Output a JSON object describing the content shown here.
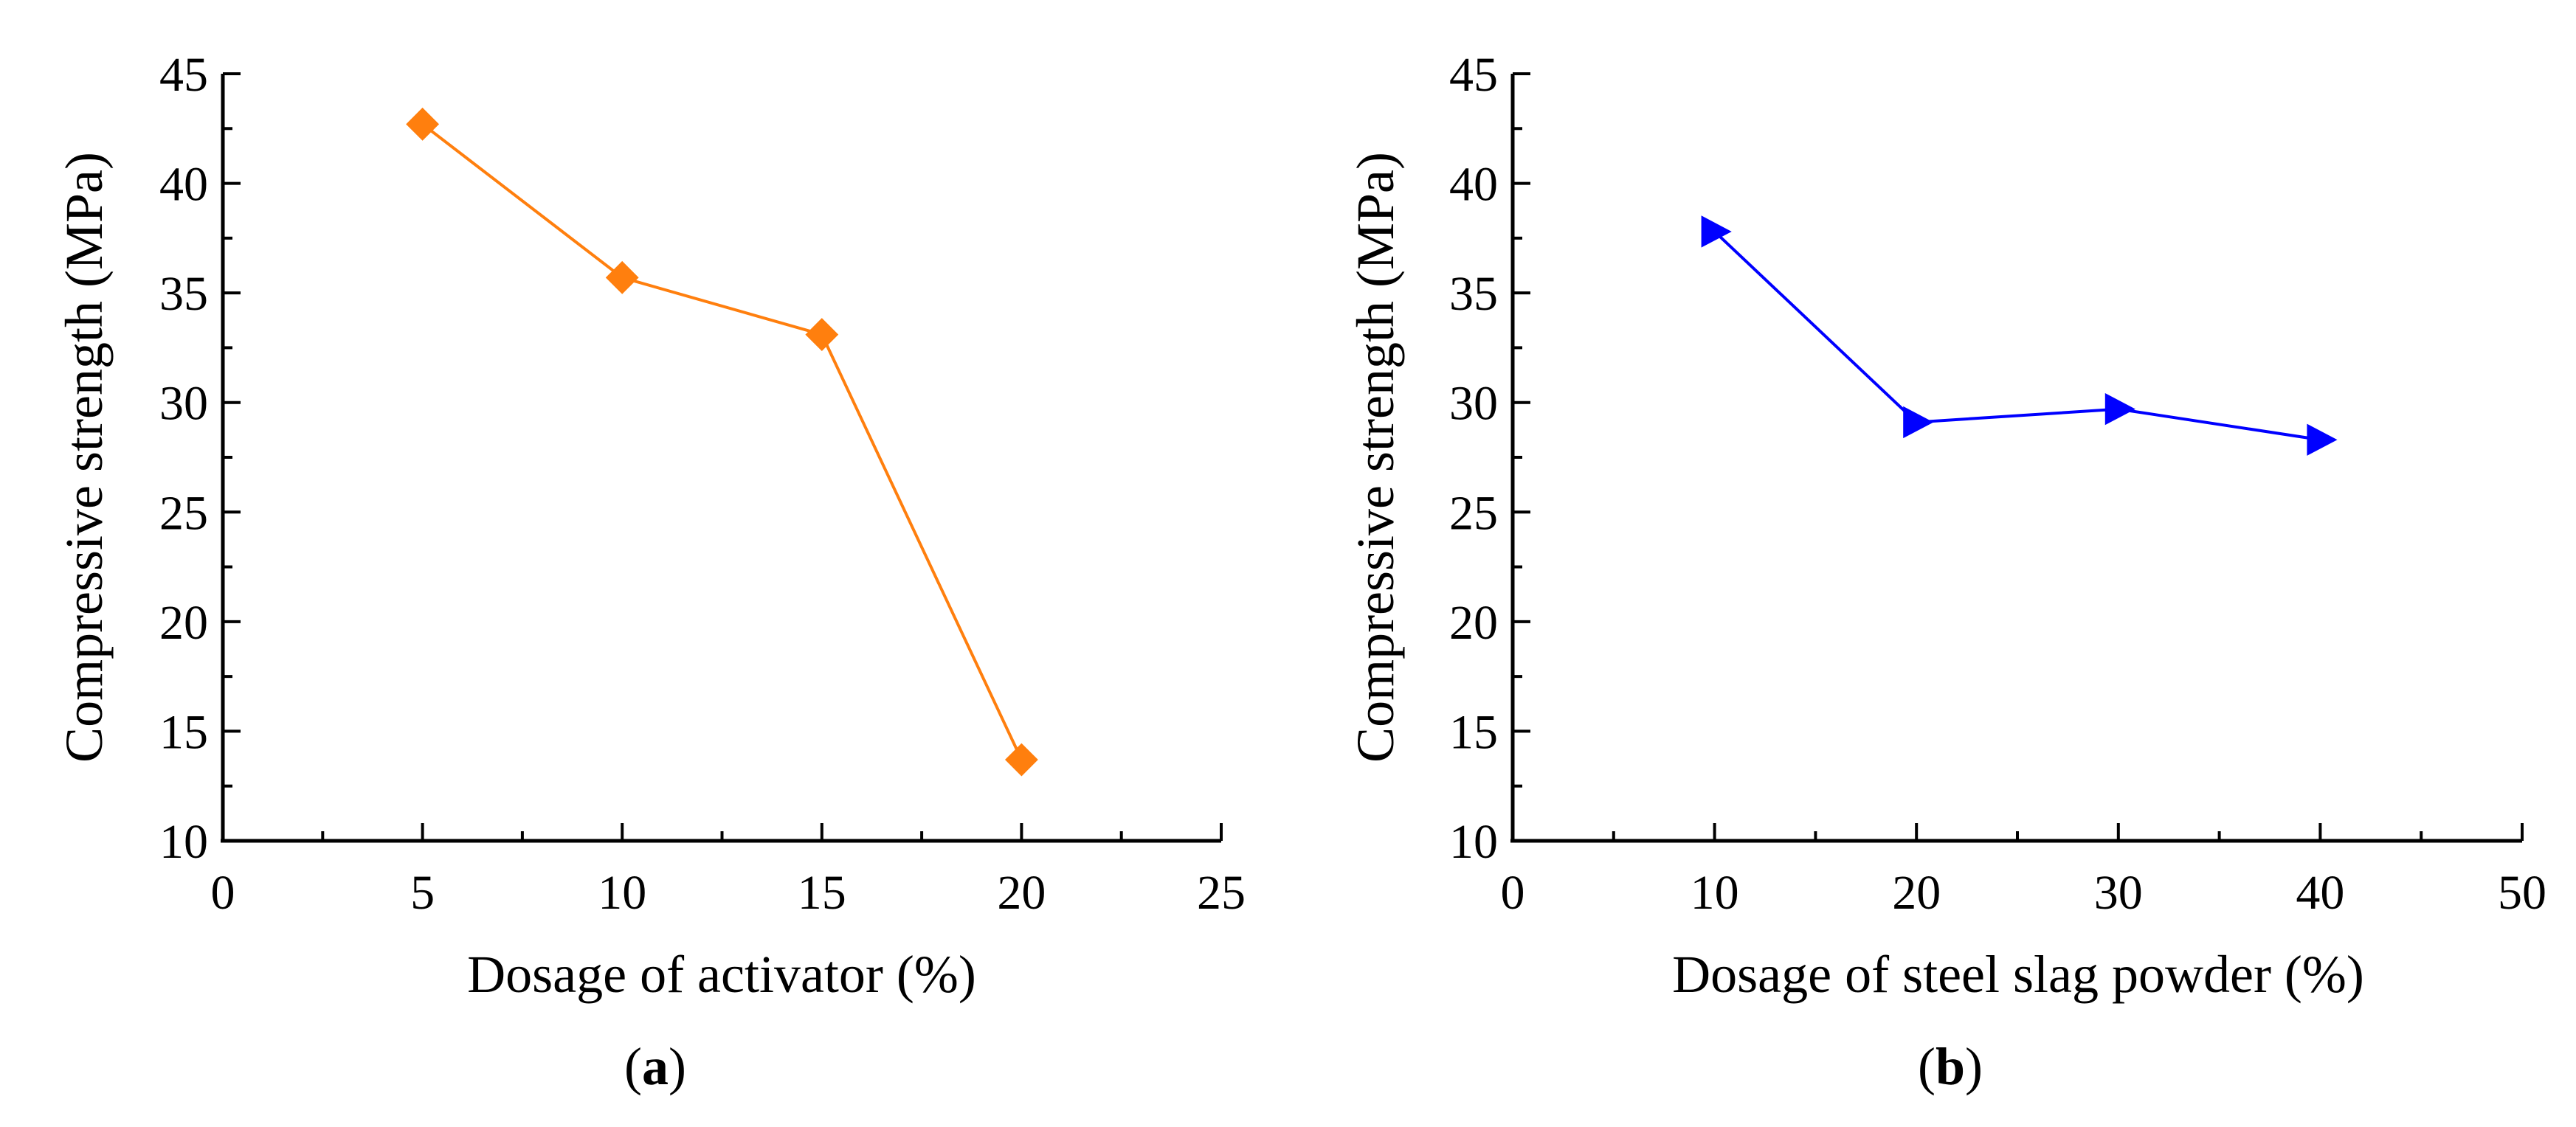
{
  "chart_data": [
    {
      "type": "line",
      "panel_label": {
        "open": "(",
        "letter": "a",
        "close": ")"
      },
      "x": [
        5,
        10,
        15,
        20
      ],
      "series": [
        {
          "name": "Compressive strength",
          "values": [
            42.7,
            35.7,
            33.1,
            13.7
          ],
          "color": "#FF7F0E",
          "marker": "diamond"
        }
      ],
      "xlabel": "Dosage of activator (%)",
      "ylabel": "Compressive strength (MPa)",
      "xlim": [
        0,
        25
      ],
      "ylim": [
        10,
        45
      ],
      "xticks": [
        0,
        5,
        10,
        15,
        20,
        25
      ],
      "xtick_labels": [
        "0",
        "5",
        "10",
        "15",
        "20",
        "25"
      ],
      "highlight_tick": "5",
      "yticks": [
        10,
        15,
        20,
        25,
        30,
        35,
        40,
        45
      ],
      "ytick_labels": [
        "10",
        "15",
        "20",
        "25",
        "30",
        "35",
        "40",
        "45"
      ],
      "grid": false
    },
    {
      "type": "line",
      "panel_label": {
        "open": "(",
        "letter": "b",
        "close": ")"
      },
      "x": [
        10,
        20,
        30,
        40
      ],
      "series": [
        {
          "name": "Compressive strength",
          "values": [
            37.8,
            29.1,
            29.7,
            28.3
          ],
          "color": "#0000FF",
          "marker": "triangle-right"
        }
      ],
      "xlabel": "Dosage of steel slag powder (%)",
      "ylabel": "Compressive strength (MPa)",
      "xlim": [
        0,
        50
      ],
      "ylim": [
        10,
        45
      ],
      "xticks": [
        0,
        10,
        20,
        30,
        40,
        50
      ],
      "xtick_labels": [
        "0",
        "10",
        "20",
        "30",
        "40",
        "50"
      ],
      "highlight_tick": "10",
      "yticks": [
        10,
        15,
        20,
        25,
        30,
        35,
        40,
        45
      ],
      "ytick_labels": [
        "10",
        "15",
        "20",
        "25",
        "30",
        "35",
        "40",
        "45"
      ],
      "grid": false
    }
  ]
}
